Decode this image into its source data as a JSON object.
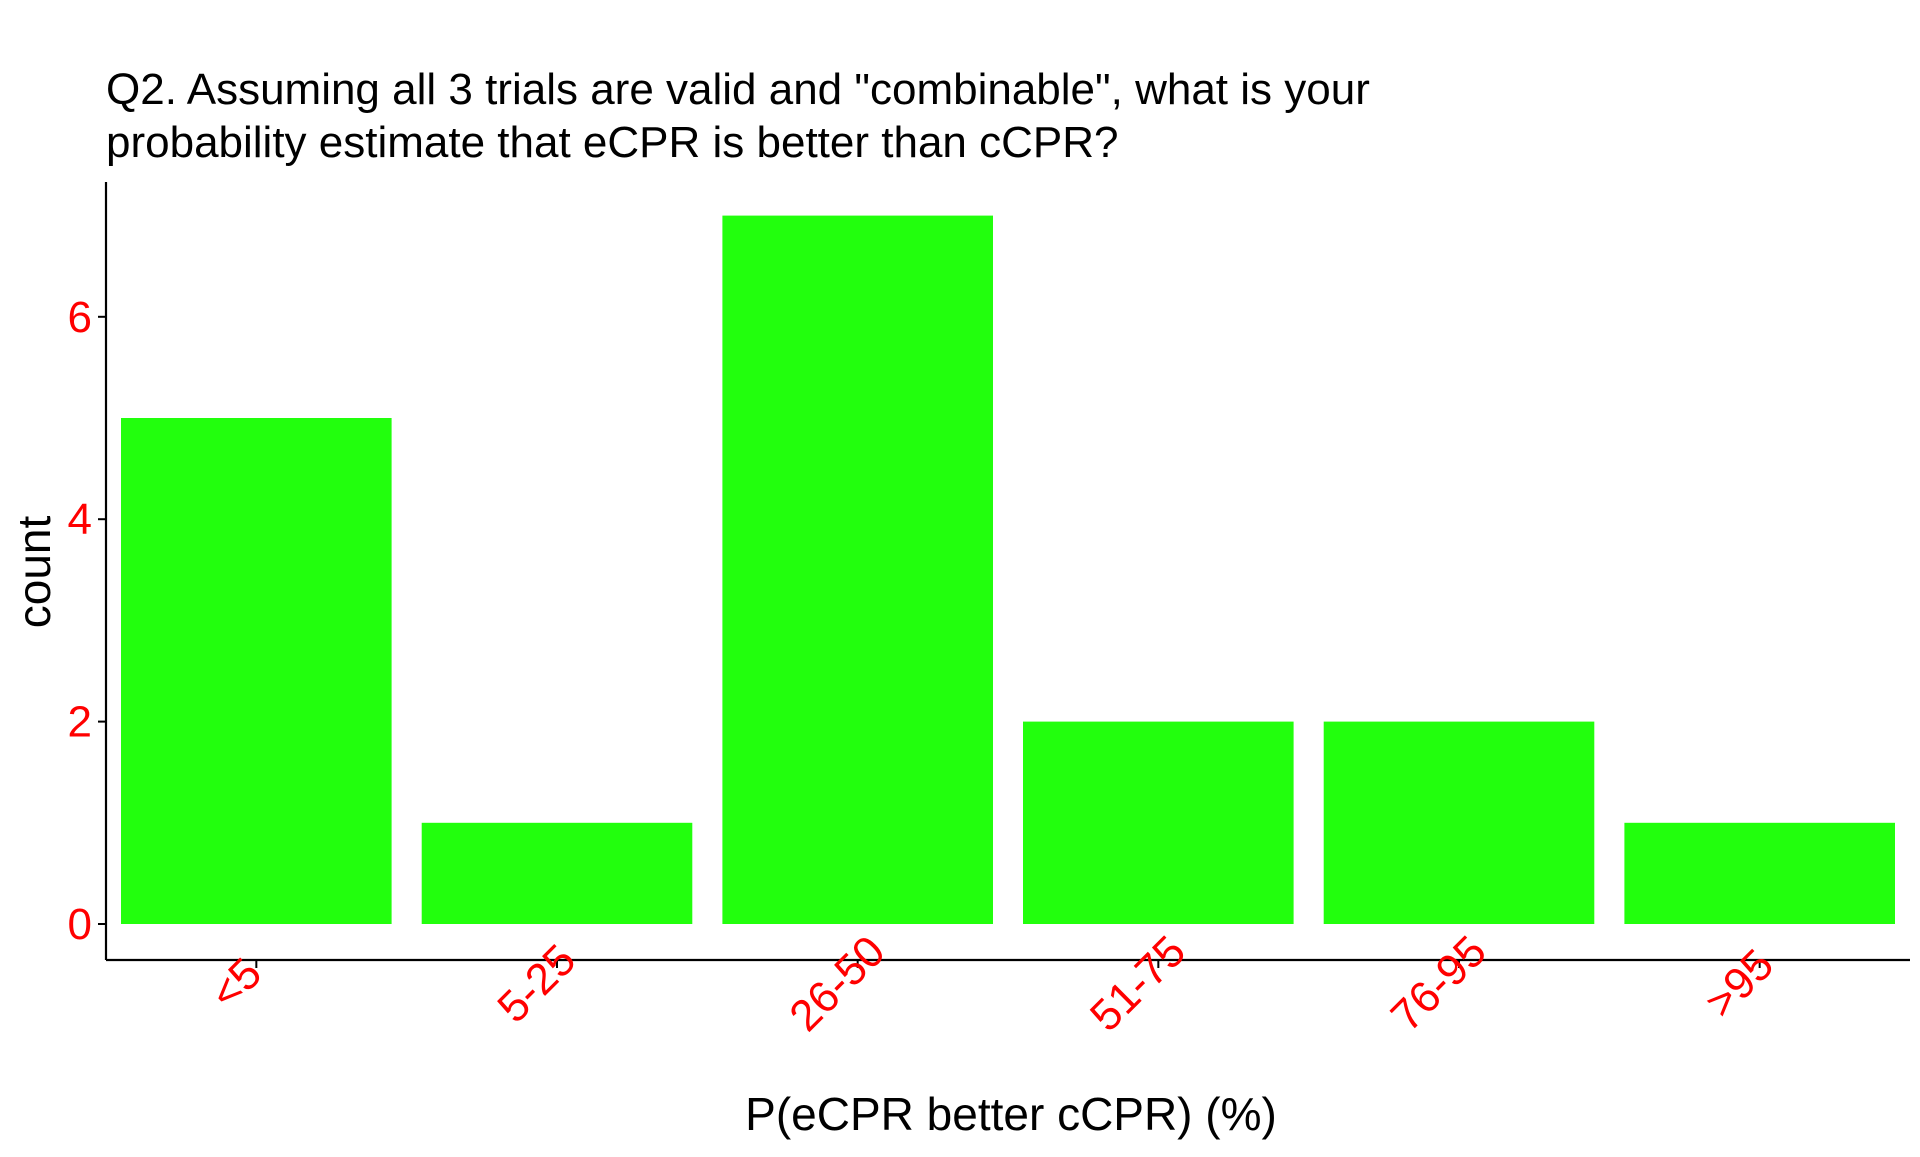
{
  "chart_data": {
    "type": "bar",
    "title_lines": [
      "Q2. Assuming all 3 trials are valid and \"combinable\", what is your",
      "probability estimate that eCPR is better than cCPR?"
    ],
    "xlabel": "P(eCPR better cCPR) (%)",
    "ylabel": "count",
    "categories": [
      "<5",
      "5-25",
      "26-50",
      "51-75",
      "76-95",
      ">95"
    ],
    "values": [
      5,
      1,
      7,
      2,
      2,
      1
    ],
    "ylim": [
      0,
      7.35
    ],
    "yticks": [
      0,
      2,
      4,
      6
    ],
    "grid": false,
    "legend": "none",
    "colors": {
      "bar": "#22ff0d",
      "tick_label": "#ff0000",
      "axis": "#000000",
      "text": "#000000"
    }
  }
}
